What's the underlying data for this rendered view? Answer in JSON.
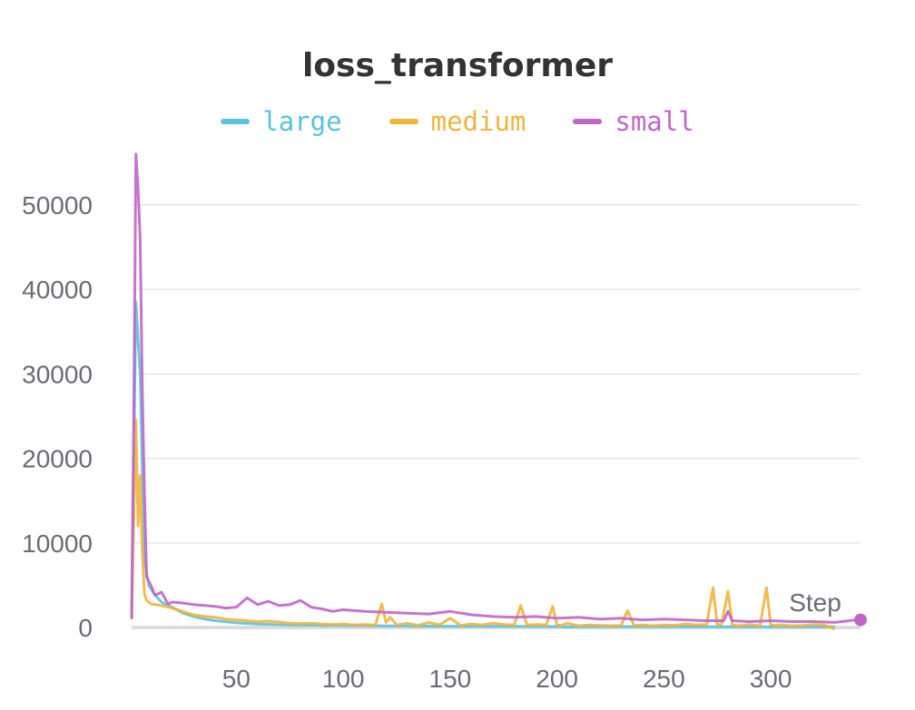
{
  "chart_data": {
    "type": "line",
    "title": "loss_transformer",
    "xlabel": "Step",
    "ylabel": "",
    "xlim": [
      1,
      342
    ],
    "ylim": [
      0,
      56000
    ],
    "xticks": [
      50,
      100,
      150,
      200,
      250,
      300
    ],
    "yticks": [
      0,
      10000,
      20000,
      30000,
      40000,
      50000
    ],
    "grid": true,
    "legend_position": "top-center",
    "series": [
      {
        "name": "large",
        "color": "#5bc3d9",
        "x": [
          1,
          3,
          5,
          7,
          9,
          12,
          15,
          20,
          25,
          30,
          35,
          40,
          50,
          60,
          70,
          80,
          100,
          120,
          150,
          175,
          200,
          205,
          225,
          250,
          275,
          300,
          330
        ],
        "y": [
          1000,
          38500,
          30000,
          8000,
          5000,
          3800,
          3000,
          2400,
          1700,
          1300,
          1000,
          800,
          550,
          400,
          330,
          280,
          220,
          180,
          150,
          130,
          120,
          80,
          110,
          100,
          90,
          85,
          80
        ]
      },
      {
        "name": "medium",
        "color": "#efb43c",
        "x": [
          1,
          3,
          4,
          5,
          6,
          7,
          8,
          10,
          15,
          20,
          25,
          30,
          35,
          40,
          45,
          50,
          55,
          60,
          65,
          70,
          75,
          80,
          85,
          90,
          95,
          100,
          105,
          110,
          115,
          118,
          120,
          122,
          125,
          130,
          135,
          140,
          145,
          150,
          155,
          160,
          165,
          170,
          175,
          180,
          183,
          186,
          190,
          195,
          198,
          200,
          202,
          205,
          210,
          215,
          220,
          225,
          230,
          233,
          236,
          240,
          245,
          250,
          255,
          260,
          265,
          270,
          273,
          275,
          277,
          280,
          282,
          285,
          290,
          295,
          298,
          300,
          302,
          305,
          310,
          315,
          320,
          325,
          330
        ],
        "y": [
          1000,
          24500,
          12000,
          18000,
          9000,
          4000,
          3200,
          2800,
          2600,
          2300,
          1900,
          1500,
          1300,
          1200,
          1000,
          900,
          800,
          700,
          750,
          650,
          500,
          450,
          500,
          400,
          350,
          420,
          300,
          350,
          280,
          2800,
          600,
          1200,
          300,
          500,
          250,
          600,
          300,
          1100,
          250,
          400,
          300,
          500,
          350,
          300,
          2600,
          300,
          350,
          300,
          2500,
          300,
          250,
          500,
          200,
          300,
          250,
          200,
          250,
          2000,
          250,
          300,
          200,
          300,
          250,
          400,
          300,
          350,
          4700,
          300,
          400,
          4300,
          300,
          200,
          350,
          200,
          4700,
          300,
          250,
          300,
          200,
          250,
          350,
          300,
          -200
        ]
      },
      {
        "name": "small",
        "color": "#c065c9",
        "x": [
          1,
          2,
          3,
          4,
          5,
          6,
          7,
          8,
          10,
          12,
          15,
          18,
          20,
          25,
          30,
          35,
          40,
          45,
          50,
          55,
          60,
          65,
          70,
          75,
          80,
          85,
          90,
          95,
          100,
          110,
          120,
          130,
          140,
          150,
          160,
          170,
          180,
          190,
          200,
          210,
          220,
          230,
          240,
          250,
          260,
          270,
          278,
          280,
          282,
          290,
          300,
          310,
          320,
          330,
          340,
          342
        ],
        "y": [
          1000,
          25000,
          56000,
          52000,
          46000,
          28000,
          16000,
          6000,
          5000,
          3800,
          4200,
          2800,
          3000,
          2900,
          2700,
          2600,
          2500,
          2300,
          2400,
          3500,
          2700,
          3100,
          2600,
          2700,
          3200,
          2400,
          2200,
          1900,
          2100,
          1900,
          1800,
          1700,
          1600,
          1900,
          1500,
          1300,
          1200,
          1300,
          1100,
          1200,
          1000,
          1100,
          900,
          1000,
          900,
          800,
          800,
          1900,
          800,
          700,
          800,
          700,
          700,
          600,
          900,
          900
        ]
      }
    ]
  }
}
